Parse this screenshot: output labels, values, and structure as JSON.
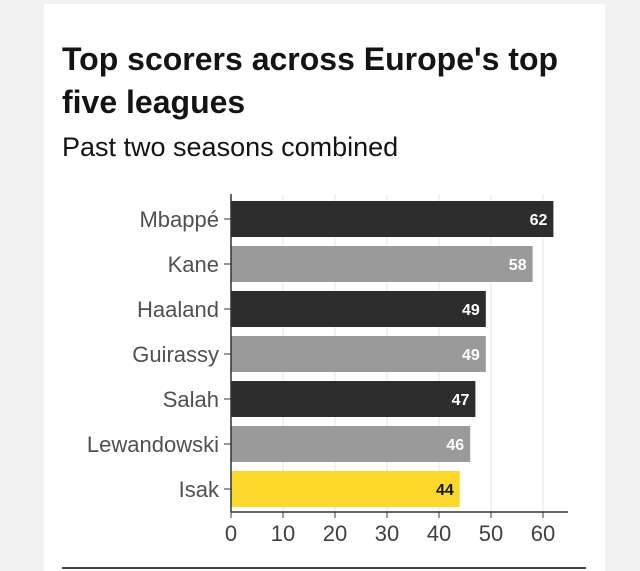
{
  "header": {
    "title": "Top scorers across Europe's top five leagues",
    "subtitle": "Past two seasons combined"
  },
  "colors": {
    "dark": "#2d2d2d",
    "grey": "#9a9a9a",
    "highlight": "#fcd82d"
  },
  "chart_data": {
    "type": "bar",
    "orientation": "horizontal",
    "categories": [
      "Mbappé",
      "Kane",
      "Haaland",
      "Guirassy",
      "Salah",
      "Lewandowski",
      "Isak"
    ],
    "values": [
      62,
      58,
      49,
      49,
      47,
      46,
      44
    ],
    "bar_colors": [
      "#2d2d2d",
      "#9a9a9a",
      "#2d2d2d",
      "#9a9a9a",
      "#2d2d2d",
      "#9a9a9a",
      "#fcd82d"
    ],
    "label_colors": [
      "#ffffff",
      "#ffffff",
      "#ffffff",
      "#ffffff",
      "#ffffff",
      "#ffffff",
      "#141414"
    ],
    "xticks": [
      0,
      10,
      20,
      30,
      40,
      50,
      60
    ],
    "xlim": [
      0,
      65
    ],
    "grid": true,
    "title": "Top scorers across Europe's top five leagues",
    "subtitle": "Past two seasons combined"
  }
}
